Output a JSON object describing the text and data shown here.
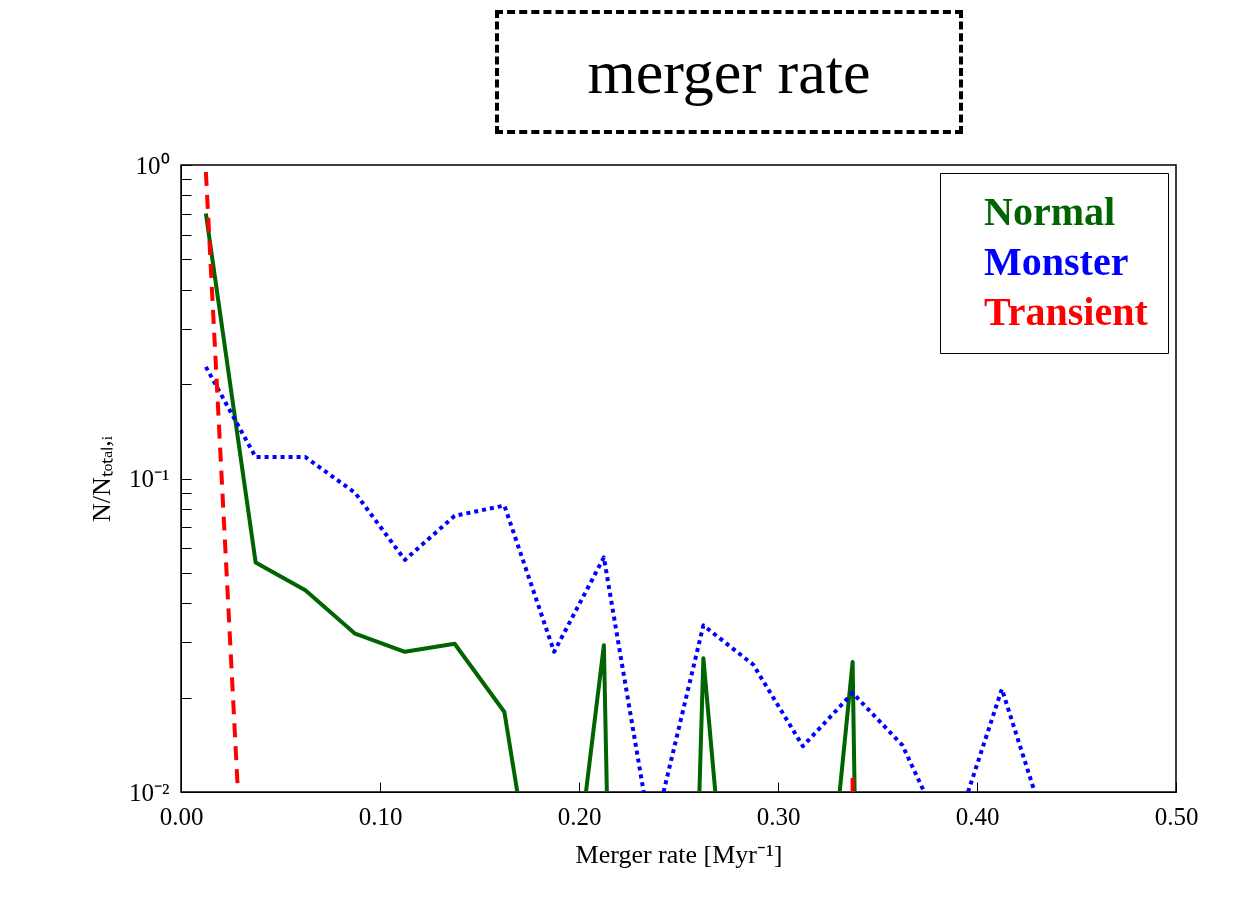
{
  "chart_data": {
    "type": "line",
    "title": "merger rate",
    "xlabel": "Merger rate [Myr⁻¹]",
    "ylabel": "N/Nₜₒₜₐₗ,ᵢ",
    "log": "y",
    "grid": false,
    "legend": "top right",
    "xlim": [
      0,
      0.5
    ],
    "xticks": [
      {
        "value": 0,
        "label": "0.00"
      },
      {
        "value": 0.1,
        "label": "0.10"
      },
      {
        "value": 0.2,
        "label": "0.20"
      },
      {
        "value": 0.3,
        "label": "0.30"
      },
      {
        "value": 0.4,
        "label": "0.40"
      },
      {
        "value": 0.5,
        "label": "0.50"
      }
    ],
    "ylim": [
      0.01,
      1
    ],
    "yticks": [
      {
        "value": 0.01,
        "label": "10⁻²"
      },
      {
        "value": 0.02,
        "label": null
      },
      {
        "value": 0.03,
        "label": null
      },
      {
        "value": 0.04,
        "label": null
      },
      {
        "value": 0.05,
        "label": null
      },
      {
        "value": 0.06,
        "label": null
      },
      {
        "value": 0.07,
        "label": null
      },
      {
        "value": 0.08,
        "label": null
      },
      {
        "value": 0.09,
        "label": null
      },
      {
        "value": 0.1,
        "label": "10⁻¹"
      },
      {
        "value": 0.2,
        "label": null
      },
      {
        "value": 0.3,
        "label": null
      },
      {
        "value": 0.4,
        "label": null
      },
      {
        "value": 0.5,
        "label": null
      },
      {
        "value": 0.6,
        "label": null
      },
      {
        "value": 0.7,
        "label": null
      },
      {
        "value": 0.8,
        "label": null
      },
      {
        "value": 0.9,
        "label": null
      },
      {
        "value": 1,
        "label": "10⁰"
      }
    ],
    "series": [
      {
        "name": "Normal",
        "color": "#006400",
        "line_style": "solid",
        "x": [
          0.0125,
          0.0375,
          0.0625,
          0.0875,
          0.1125,
          0.1375,
          0.1625,
          0.169,
          0.19,
          0.2035,
          0.2125,
          0.214,
          0.24,
          0.2605,
          0.2625,
          0.2685,
          0.3,
          0.331,
          0.3375,
          0.3385
        ],
        "values": [
          0.7,
          0.054,
          0.044,
          0.032,
          0.028,
          0.0297,
          0.018,
          0.01,
          null,
          0.01,
          0.0294,
          0.01,
          null,
          0.01,
          0.0267,
          0.01,
          null,
          0.01,
          0.026,
          0.01
        ]
      },
      {
        "name": "Monster",
        "color": "#0000ff",
        "line_style": "dotted",
        "x": [
          0.0125,
          0.0375,
          0.0625,
          0.0875,
          0.1125,
          0.1375,
          0.1625,
          0.1875,
          0.2125,
          0.2325,
          0.237,
          0.2425,
          0.2625,
          0.2875,
          0.3125,
          0.3375,
          0.3625,
          0.3735,
          0.385,
          0.3955,
          0.4125,
          0.429
        ],
        "values": [
          0.227,
          0.117,
          0.117,
          0.09,
          0.055,
          0.076,
          0.082,
          0.028,
          0.056,
          0.01,
          null,
          0.01,
          0.034,
          0.0255,
          0.014,
          0.0207,
          0.0141,
          0.01,
          null,
          0.01,
          0.0213,
          0.01
        ]
      },
      {
        "name": "Transient",
        "color": "#ff0000",
        "line_style": "dashed",
        "x": [
          0.0125,
          0.0286,
          0.2,
          0.3375,
          0.3375
        ],
        "values": [
          0.95,
          0.01,
          null,
          0.01,
          0.0113
        ]
      }
    ]
  }
}
